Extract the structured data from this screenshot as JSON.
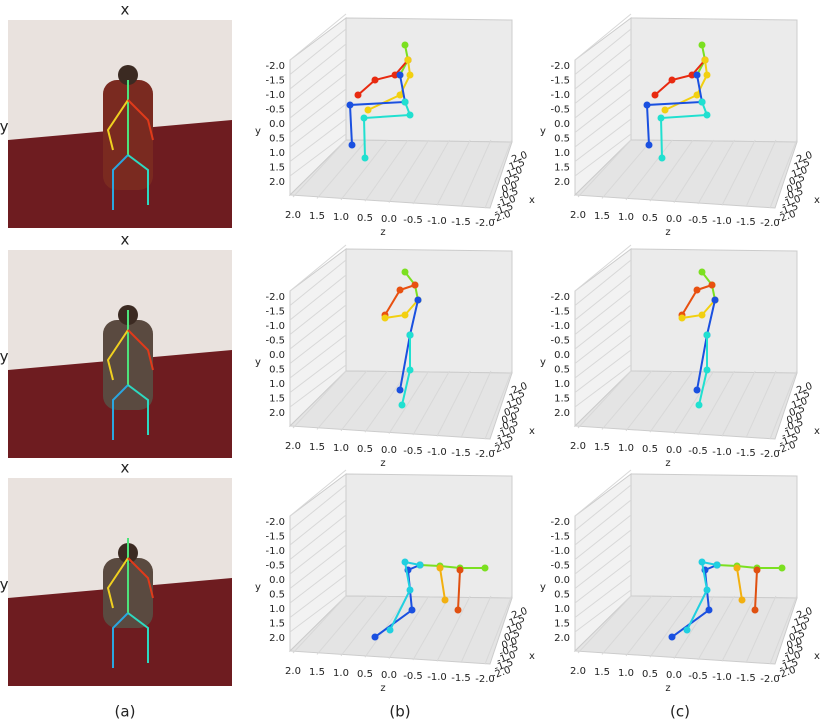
{
  "captions": [
    "(a)",
    "(b)",
    "(c)"
  ],
  "image_axes": {
    "x": "x",
    "y": "y"
  },
  "plot_axes": {
    "yticks": [
      "-2.0",
      "-1.5",
      "-1.0",
      "-0.5",
      "0.0",
      "0.5",
      "1.0",
      "1.5",
      "2.0"
    ],
    "zticks": [
      "2.0",
      "1.5",
      "1.0",
      "0.5",
      "0.0",
      "-0.5",
      "-1.0",
      "-1.5",
      "-2.0"
    ],
    "xticks": [
      "2.0",
      "1.5",
      "1.0",
      "0.5",
      "0.0",
      "-0.5",
      "-1.0",
      "-1.5",
      "-2.0"
    ],
    "xlabel": "x",
    "ylabel": "y",
    "zlabel": "z"
  }
}
